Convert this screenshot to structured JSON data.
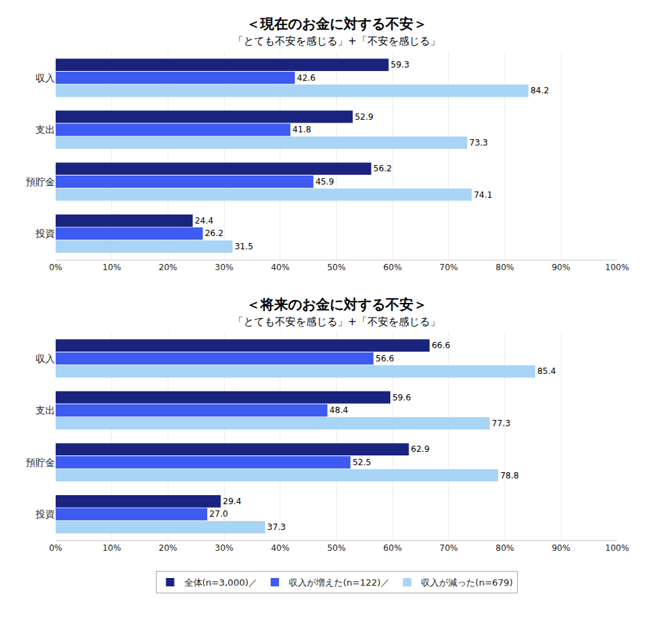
{
  "chart_data": [
    {
      "type": "bar",
      "orientation": "horizontal",
      "title": "＜現在のお金に対する不安＞",
      "subtitle": "「とても不安を感じる」+「不安を感じる」",
      "categories": [
        "収入",
        "支出",
        "預貯金",
        "投資"
      ],
      "series": [
        {
          "name": "全体(n=3,000)／",
          "color": "#1a237e",
          "values": [
            59.3,
            52.9,
            56.2,
            24.4
          ]
        },
        {
          "name": "収入が増えた(n=122)／",
          "color": "#3d5af1",
          "values": [
            42.6,
            41.8,
            45.9,
            26.2
          ]
        },
        {
          "name": "収入が減った(n=679)",
          "color": "#a8d4f5",
          "values": [
            84.2,
            73.3,
            74.1,
            31.5
          ]
        }
      ],
      "xlim": [
        0,
        100
      ],
      "xticks": [
        {
          "value": 0,
          "label": "0%"
        },
        {
          "value": 10,
          "label": "10%"
        },
        {
          "value": 20,
          "label": "20%"
        },
        {
          "value": 30,
          "label": "30%"
        },
        {
          "value": 40,
          "label": "40%"
        },
        {
          "value": 50,
          "label": "50%"
        },
        {
          "value": 60,
          "label": "60%"
        },
        {
          "value": 70,
          "label": "70%"
        },
        {
          "value": 80,
          "label": "80%"
        },
        {
          "value": 90,
          "label": "90%"
        },
        {
          "value": 100,
          "label": "100%"
        }
      ],
      "grid": true,
      "data_labels": true,
      "legend": "bottom"
    },
    {
      "type": "bar",
      "orientation": "horizontal",
      "title": "＜将来のお金に対する不安＞",
      "subtitle": "「とても不安を感じる」+「不安を感じる」",
      "categories": [
        "収入",
        "支出",
        "預貯金",
        "投資"
      ],
      "series": [
        {
          "name": "全体(n=3,000)／",
          "color": "#1a237e",
          "values": [
            66.6,
            59.6,
            62.9,
            29.4
          ]
        },
        {
          "name": "収入が増えた(n=122)／",
          "color": "#3d5af1",
          "values": [
            56.6,
            48.4,
            52.5,
            27.0
          ],
          "value_labels": [
            "56.6",
            "48.4",
            "52.5",
            "27.0"
          ]
        },
        {
          "name": "収入が減った(n=679)",
          "color": "#a8d4f5",
          "values": [
            85.4,
            77.3,
            78.8,
            37.3
          ]
        }
      ],
      "xlim": [
        0,
        100
      ],
      "xticks": [
        {
          "value": 0,
          "label": "0%"
        },
        {
          "value": 10,
          "label": "10%"
        },
        {
          "value": 20,
          "label": "20%"
        },
        {
          "value": 30,
          "label": "30%"
        },
        {
          "value": 40,
          "label": "40%"
        },
        {
          "value": 50,
          "label": "50%"
        },
        {
          "value": 60,
          "label": "60%"
        },
        {
          "value": 70,
          "label": "70%"
        },
        {
          "value": 80,
          "label": "80%"
        },
        {
          "value": 90,
          "label": "90%"
        },
        {
          "value": 100,
          "label": "100%"
        }
      ],
      "grid": true,
      "data_labels": true
    }
  ]
}
